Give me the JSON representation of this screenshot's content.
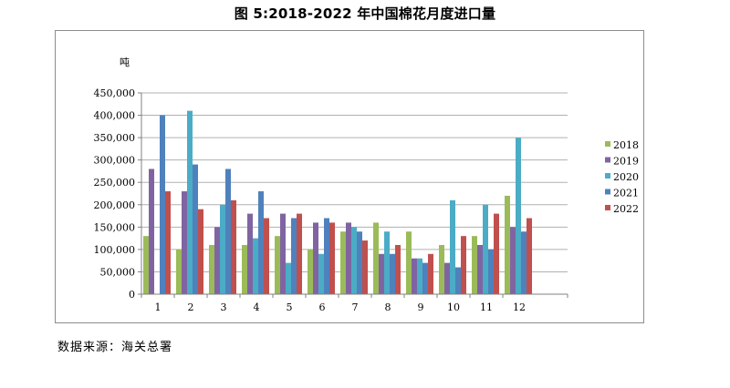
{
  "title": "图 5:2018-2022 年中国棉花月度进口量",
  "source": "数据来源：海关总署",
  "chart_data": {
    "type": "bar",
    "unit": "吨",
    "categories": [
      "1",
      "2",
      "3",
      "4",
      "5",
      "6",
      "7",
      "8",
      "9",
      "10",
      "11",
      "12"
    ],
    "y_ticks": [
      "0",
      "50,000",
      "100,000",
      "150,000",
      "200,000",
      "250,000",
      "300,000",
      "350,000",
      "400,000",
      "450,000"
    ],
    "ylim": [
      0,
      450000
    ],
    "grid": true,
    "legend_position": "right",
    "series": [
      {
        "name": "2018",
        "color": "#9bbb59",
        "values": [
          130000,
          100000,
          110000,
          110000,
          130000,
          100000,
          140000,
          160000,
          140000,
          110000,
          130000,
          220000
        ]
      },
      {
        "name": "2019",
        "color": "#8064a2",
        "values": [
          280000,
          230000,
          150000,
          180000,
          180000,
          160000,
          160000,
          90000,
          80000,
          70000,
          110000,
          150000
        ]
      },
      {
        "name": "2020",
        "color": "#4bacc6",
        "values": [
          0,
          410000,
          200000,
          125000,
          70000,
          90000,
          150000,
          140000,
          80000,
          210000,
          200000,
          350000
        ]
      },
      {
        "name": "2021",
        "color": "#4f81bd",
        "values": [
          400000,
          290000,
          280000,
          230000,
          170000,
          170000,
          140000,
          90000,
          70000,
          60000,
          100000,
          140000
        ]
      },
      {
        "name": "2022",
        "color": "#c0504d",
        "values": [
          230000,
          190000,
          210000,
          170000,
          180000,
          160000,
          120000,
          110000,
          90000,
          130000,
          180000,
          170000
        ]
      }
    ]
  }
}
